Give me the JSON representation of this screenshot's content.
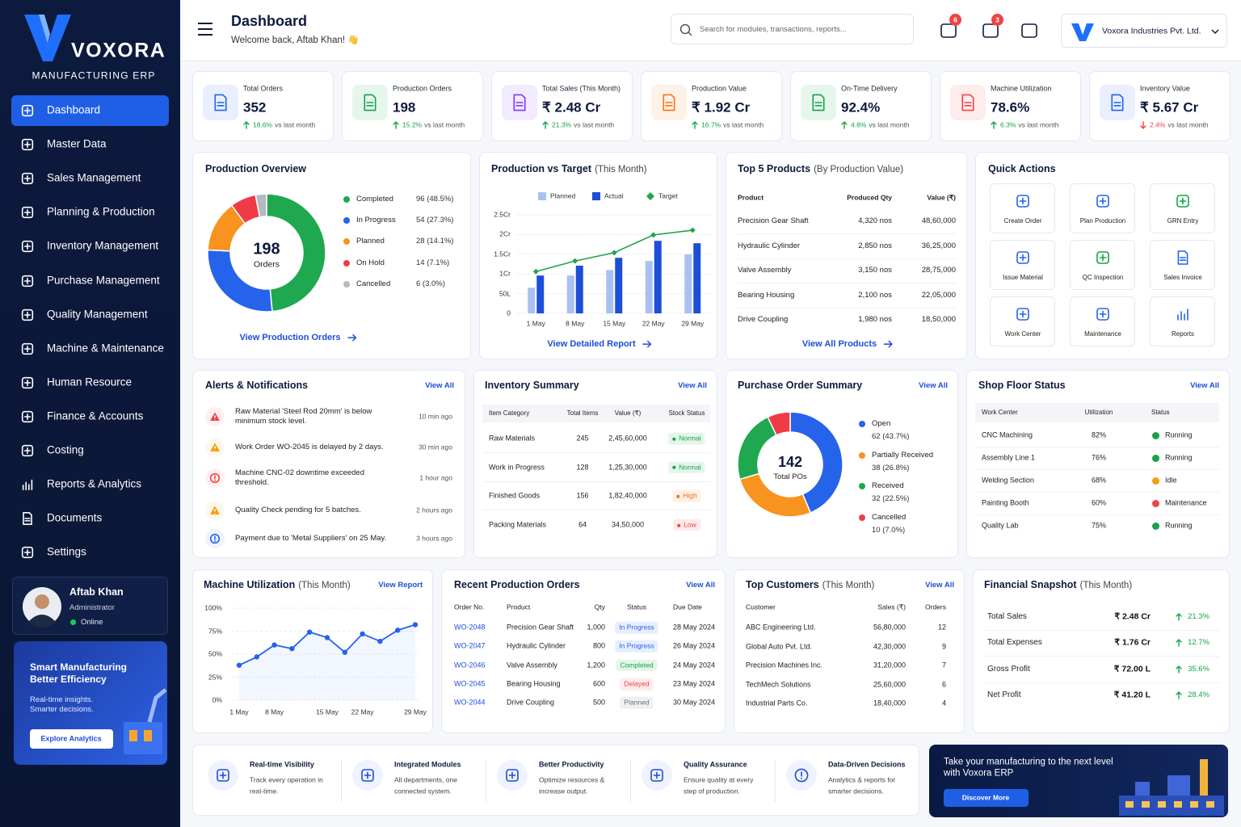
{
  "sidebar": {
    "brand": "VOXORA",
    "tagline": "MANUFACTURING ERP",
    "menu": [
      "Dashboard",
      "Master Data",
      "Sales Management",
      "Planning & Production",
      "Inventory Management",
      "Purchase Management",
      "Quality Management",
      "Machine & Maintenance",
      "Human Resource",
      "Finance & Accounts",
      "Costing",
      "Reports & Analytics",
      "Documents",
      "Settings"
    ],
    "user": {
      "name": "Aftab Khan",
      "role": "Administrator",
      "status": "Online"
    },
    "promo": {
      "title": "Smart Manufacturing Better Efficiency",
      "text": "Real-time insights. Smarter decisions.",
      "button": "Explore Analytics"
    }
  },
  "header": {
    "title": "Dashboard",
    "welcome": "Welcome back, Aftab Khan! 👋",
    "search_placeholder": "Search for modules, transactions, reports...",
    "notifications": "6",
    "messages": "3",
    "company": "Voxora Industries Pvt. Ltd."
  },
  "kpi_note": "vs last month",
  "kpis": [
    {
      "label": "Total Orders",
      "value": "352",
      "change": "18.6%",
      "trend": "up",
      "color": "#2563eb"
    },
    {
      "label": "Production Orders",
      "value": "198",
      "change": "15.2%",
      "trend": "up",
      "color": "#16a34a"
    },
    {
      "label": "Total Sales (This Month)",
      "value": "₹ 2.48 Cr",
      "change": "21.3%",
      "trend": "up",
      "color": "#7c3aed"
    },
    {
      "label": "Production Value",
      "value": "₹ 1.92 Cr",
      "change": "16.7%",
      "trend": "up",
      "color": "#f97316"
    },
    {
      "label": "On-Time Delivery",
      "value": "92.4%",
      "change": "4.8%",
      "trend": "up",
      "color": "#16a34a"
    },
    {
      "label": "Machine Utilization",
      "value": "78.6%",
      "change": "6.3%",
      "trend": "up",
      "color": "#ef4444"
    },
    {
      "label": "Inventory Value",
      "value": "₹ 5.67 Cr",
      "change": "2.4%",
      "trend": "down",
      "color": "#2563eb"
    }
  ],
  "production_overview": {
    "title": "Production Overview",
    "total": "198",
    "total_label": "Orders",
    "link": "View Production Orders",
    "chart_data": {
      "type": "pie",
      "categories": [
        "Completed",
        "In Progress",
        "Planned",
        "On Hold",
        "Cancelled"
      ],
      "values": [
        96,
        54,
        28,
        14,
        6
      ],
      "value_labels": [
        "96 (48.5%)",
        "54 (27.3%)",
        "28 (14.1%)",
        "14 (7.1%)",
        "6 (3.0%)"
      ],
      "colors": [
        "#1fa84f",
        "#2563eb",
        "#f7931e",
        "#ef3b46",
        "#b4bac4"
      ]
    }
  },
  "production_vs_target": {
    "title": "Production vs Target",
    "subtitle": "(This Month)",
    "link": "View Detailed Report",
    "chart_data": {
      "type": "bar",
      "categories": [
        "1 May",
        "8 May",
        "15 May",
        "22 May",
        "29 May"
      ],
      "series": [
        {
          "name": "Planned",
          "color": "#a9c1f2",
          "values": [
            65,
            96,
            110,
            133,
            150
          ]
        },
        {
          "name": "Actual",
          "color": "#1d4ed8",
          "values": [
            96,
            121,
            141,
            184,
            178
          ]
        },
        {
          "name": "Target",
          "type": "line",
          "color": "#22a34a",
          "values": [
            106,
            133,
            154,
            199,
            211
          ]
        }
      ],
      "ylim": [
        0,
        250
      ],
      "yticks": [
        0,
        {
          "value": 50,
          "label": "50L"
        },
        {
          "value": 100,
          "label": "1Cr"
        },
        {
          "value": 150,
          "label": "1.5Cr"
        },
        {
          "value": 200,
          "label": "2Cr"
        },
        {
          "value": 250,
          "label": "2.5Cr"
        }
      ]
    }
  },
  "top_products": {
    "title": "Top 5 Products",
    "subtitle": "(By Production Value)",
    "link": "View All Products",
    "columns": [
      "Product",
      "Produced Qty",
      "Value (₹)"
    ],
    "rows": [
      {
        "product": "Precision Gear Shaft",
        "qty": "4,320 nos",
        "value": "48,60,000"
      },
      {
        "product": "Hydraulic Cylinder",
        "qty": "2,850 nos",
        "value": "36,25,000"
      },
      {
        "product": "Valve Assembly",
        "qty": "3,150 nos",
        "value": "28,75,000"
      },
      {
        "product": "Bearing Housing",
        "qty": "2,100 nos",
        "value": "22,05,000"
      },
      {
        "product": "Drive Coupling",
        "qty": "1,980 nos",
        "value": "18,50,000"
      }
    ]
  },
  "quick_actions": {
    "title": "Quick Actions",
    "items": [
      {
        "label": "Create Order",
        "color": "#2563eb"
      },
      {
        "label": "Plan Production",
        "color": "#2563eb"
      },
      {
        "label": "GRN Entry",
        "color": "#16a34a"
      },
      {
        "label": "Issue Material",
        "color": "#2563eb"
      },
      {
        "label": "QC Inspection",
        "color": "#16a34a"
      },
      {
        "label": "Sales Invoice",
        "color": "#2563eb"
      },
      {
        "label": "Work Center",
        "color": "#2563eb"
      },
      {
        "label": "Maintenance",
        "color": "#2563eb"
      },
      {
        "label": "Reports",
        "color": "#2563eb"
      }
    ]
  },
  "alerts": {
    "title": "Alerts & Notifications",
    "link": "View All",
    "items": [
      {
        "text": "Raw Material 'Steel Rod 20mm' is below minimum stock level.",
        "time": "10 min ago",
        "color": "#ef4444"
      },
      {
        "text": "Work Order WO-2045 is delayed by 2 days.",
        "time": "30 min ago",
        "color": "#f59e0b"
      },
      {
        "text": "Machine CNC-02 downtime exceeded threshold.",
        "time": "1 hour ago",
        "color": "#ef4444"
      },
      {
        "text": "Quality Check pending for 5 batches.",
        "time": "2 hours ago",
        "color": "#f59e0b"
      },
      {
        "text": "Payment due to 'Metal Suppliers' on 25 May.",
        "time": "3 hours ago",
        "color": "#2563eb"
      }
    ]
  },
  "inventory": {
    "title": "Inventory Summary",
    "link": "View All",
    "columns": [
      "Item Category",
      "Total Items",
      "Value (₹)",
      "Stock Status"
    ],
    "rows": [
      {
        "category": "Raw Materials",
        "items": "245",
        "value": "2,45,60,000",
        "status": {
          "text": "Normal",
          "color": "#16a34a"
        }
      },
      {
        "category": "Work in Progress",
        "items": "128",
        "value": "1,25,30,000",
        "status": {
          "text": "Normal",
          "color": "#16a34a"
        }
      },
      {
        "category": "Finished Goods",
        "items": "156",
        "value": "1,82,40,000",
        "status": {
          "text": "High",
          "color": "#f97316"
        }
      },
      {
        "category": "Packing Materials",
        "items": "64",
        "value": "34,50,000",
        "status": {
          "text": "Low",
          "color": "#ef4444"
        }
      }
    ]
  },
  "purchase_orders": {
    "title": "Purchase Order Summary",
    "link": "View All",
    "total": "142",
    "total_label": "Total POs",
    "chart_data": {
      "type": "pie",
      "categories": [
        "Open",
        "Partially Received",
        "Received",
        "Cancelled"
      ],
      "values": [
        62,
        38,
        32,
        10
      ],
      "value_labels": [
        "62 (43.7%)",
        "38 (26.8%)",
        "32 (22.5%)",
        "10 (7.0%)"
      ],
      "colors": [
        "#2563eb",
        "#f7931e",
        "#1fa84f",
        "#ef3b46"
      ]
    }
  },
  "shop_floor": {
    "title": "Shop Floor Status",
    "link": "View All",
    "columns": [
      "Work Center",
      "Utilization",
      "Status"
    ],
    "rows": [
      {
        "center": "CNC Machining",
        "util": "82%",
        "status": {
          "text": "Running",
          "color": "#16a34a"
        }
      },
      {
        "center": "Assembly Line 1",
        "util": "76%",
        "status": {
          "text": "Running",
          "color": "#16a34a"
        }
      },
      {
        "center": "Welding Section",
        "util": "68%",
        "status": {
          "text": "Idle",
          "color": "#f59e0b"
        }
      },
      {
        "center": "Painting Booth",
        "util": "60%",
        "status": {
          "text": "Maintenance",
          "color": "#ef4444"
        }
      },
      {
        "center": "Quality Lab",
        "util": "75%",
        "status": {
          "text": "Running",
          "color": "#16a34a"
        }
      }
    ]
  },
  "machine_utilization": {
    "title": "Machine Utilization",
    "subtitle": "(This Month)",
    "link": "View Report",
    "chart_data": {
      "type": "line",
      "categories": [
        "1 May",
        null,
        "8 May",
        null,
        null,
        "15 May",
        null,
        "22 May",
        null,
        null,
        "29 May"
      ],
      "values": [
        38,
        47,
        60,
        56,
        74,
        68,
        52,
        72,
        64,
        76,
        82
      ],
      "color": "#2563eb",
      "ylim": [
        0,
        100
      ],
      "yticks": [
        {
          "value": 0,
          "label": "0%"
        },
        {
          "value": 25,
          "label": "25%"
        },
        {
          "value": 50,
          "label": "50%"
        },
        {
          "value": 75,
          "label": "75%"
        },
        {
          "value": 100,
          "label": "100%"
        }
      ],
      "grid": true
    }
  },
  "recent_orders": {
    "title": "Recent Production Orders",
    "link": "View All",
    "columns": [
      "Order No.",
      "Product",
      "Qty",
      "Status",
      "Due Date"
    ],
    "rows": [
      {
        "order": "WO-2048",
        "product": "Precision Gear Shaft",
        "qty": "1,000",
        "status": {
          "text": "In Progress",
          "color": "#2563eb"
        },
        "due": "28 May 2024"
      },
      {
        "order": "WO-2047",
        "product": "Hydraulic Cylinder",
        "qty": "800",
        "status": {
          "text": "In Progress",
          "color": "#2563eb"
        },
        "due": "26 May 2024"
      },
      {
        "order": "WO-2046",
        "product": "Valve Assembly",
        "qty": "1,200",
        "status": {
          "text": "Completed",
          "color": "#16a34a"
        },
        "due": "24 May 2024"
      },
      {
        "order": "WO-2045",
        "product": "Bearing Housing",
        "qty": "600",
        "status": {
          "text": "Delayed",
          "color": "#ef4444"
        },
        "due": "23 May 2024"
      },
      {
        "order": "WO-2044",
        "product": "Drive Coupling",
        "qty": "500",
        "status": {
          "text": "Planned",
          "color": "#6b7280"
        },
        "due": "30 May 2024"
      }
    ]
  },
  "top_customers": {
    "title": "Top Customers",
    "subtitle": "(This Month)",
    "link": "View All",
    "columns": [
      "Customer",
      "Sales (₹)",
      "Orders"
    ],
    "rows": [
      {
        "customer": "ABC Engineering Ltd.",
        "sales": "56,80,000",
        "orders": "12"
      },
      {
        "customer": "Global Auto Pvt. Ltd.",
        "sales": "42,30,000",
        "orders": "9"
      },
      {
        "customer": "Precision Machines Inc.",
        "sales": "31,20,000",
        "orders": "7"
      },
      {
        "customer": "TechMech Solutions",
        "sales": "25,60,000",
        "orders": "6"
      },
      {
        "customer": "Industrial Parts Co.",
        "sales": "18,40,000",
        "orders": "4"
      }
    ]
  },
  "financial": {
    "title": "Financial Snapshot",
    "subtitle": "(This Month)",
    "rows": [
      {
        "label": "Total Sales",
        "value": "₹ 2.48 Cr",
        "change": "21.3%"
      },
      {
        "label": "Total Expenses",
        "value": "₹ 1.76 Cr",
        "change": "12.7%"
      },
      {
        "label": "Gross Profit",
        "value": "₹ 72.00 L",
        "change": "35.6%"
      },
      {
        "label": "Net Profit",
        "value": "₹ 41.20 L",
        "change": "28.4%"
      }
    ]
  },
  "features": [
    {
      "title": "Real-time Visibility",
      "text": "Track every operation in real-time."
    },
    {
      "title": "Integrated Modules",
      "text": "All departments, one connected system."
    },
    {
      "title": "Better Productivity",
      "text": "Optimize resources & increase output."
    },
    {
      "title": "Quality Assurance",
      "text": "Ensure quality at every step of production."
    },
    {
      "title": "Data-Driven Decisions",
      "text": "Analytics & reports for smarter decisions."
    }
  ],
  "cta": {
    "text": "Take your manufacturing to the next level with Voxora ERP",
    "button": "Discover More"
  }
}
